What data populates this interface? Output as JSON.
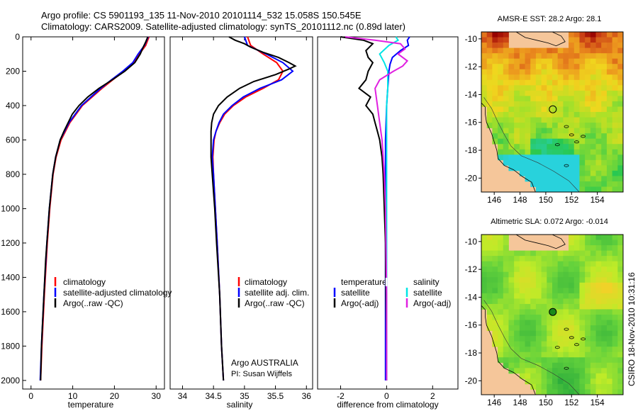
{
  "header": {
    "line1": "Argo profile: CS 5901193_135 11-Nov-2010 20101114_532 15.058S 150.545E",
    "line2": "Climatology: CARS2009. Satellite-adjusted climatology: synTS_20101112.nc (0.89d later)"
  },
  "colors": {
    "clim": "#ff0000",
    "sat": "#0000ff",
    "argo": "#000000",
    "sal_sat": "#00e5e5",
    "sal_argo": "#e020e0",
    "land": "#f5c69a",
    "map_green": "#33cc33"
  },
  "chart_data": [
    {
      "type": "line",
      "id": "temperature",
      "xlabel": "temperature",
      "ylabel": "",
      "xlim": [
        -2,
        32
      ],
      "ylim": [
        2050,
        0
      ],
      "xticks": [
        0,
        10,
        20,
        30
      ],
      "yticks": [
        0,
        200,
        400,
        600,
        800,
        1000,
        1200,
        1400,
        1600,
        1800,
        2000
      ],
      "legend": [
        "climatology",
        "satellite-adjusted climatology",
        "Argo(..raw -QC)"
      ],
      "series": [
        {
          "name": "climatology",
          "color": "#ff0000",
          "depth": [
            0,
            50,
            100,
            150,
            200,
            250,
            300,
            400,
            500,
            600,
            700,
            800,
            1000,
            1200,
            1500,
            1800,
            2000
          ],
          "values": [
            28.3,
            27.5,
            26.0,
            24.8,
            22.3,
            19.6,
            17.0,
            12.3,
            9.3,
            7.2,
            6.0,
            5.3,
            4.5,
            3.9,
            3.2,
            2.6,
            2.3
          ]
        },
        {
          "name": "satellite-adjusted climatology",
          "color": "#0000ff",
          "depth": [
            0,
            50,
            100,
            150,
            200,
            250,
            300,
            400,
            500,
            600,
            700,
            800,
            1000,
            1200,
            1500,
            1800,
            2000
          ],
          "values": [
            28.1,
            27.2,
            25.7,
            24.4,
            22.0,
            19.3,
            16.7,
            12.1,
            9.1,
            7.0,
            5.9,
            5.2,
            4.4,
            3.8,
            3.1,
            2.5,
            2.2
          ]
        },
        {
          "name": "Argo(..raw -QC)",
          "color": "#000000",
          "depth": [
            0,
            30,
            60,
            100,
            150,
            200,
            250,
            300,
            350,
            400,
            450,
            500,
            550,
            600,
            700,
            800,
            900,
            1000,
            1100,
            1200,
            1300,
            1400,
            1500,
            1600,
            1700,
            1800,
            1900,
            2000
          ],
          "values": [
            28.0,
            27.5,
            26.9,
            26.2,
            24.9,
            22.5,
            19.5,
            16.3,
            13.6,
            11.5,
            9.9,
            8.9,
            7.9,
            7.0,
            5.9,
            5.2,
            4.8,
            4.4,
            4.1,
            3.8,
            3.5,
            3.3,
            3.1,
            2.9,
            2.7,
            2.5,
            2.4,
            2.3
          ]
        }
      ]
    },
    {
      "type": "line",
      "id": "salinity",
      "xlabel": "salinity",
      "ylabel": "",
      "xlim": [
        33.8,
        36.1
      ],
      "ylim": [
        2050,
        0
      ],
      "xticks": [
        34,
        34.5,
        35,
        35.5,
        36
      ],
      "legend": [
        "climatology",
        "satellite adj. clim.",
        "Argo(..raw -QC)"
      ],
      "annotation": [
        "Argo AUSTRALIA",
        "PI: Susan Wijffels"
      ],
      "series": [
        {
          "name": "climatology",
          "color": "#ff0000",
          "depth": [
            0,
            50,
            100,
            150,
            200,
            250,
            300,
            350,
            400,
            450,
            500,
            550,
            600,
            700,
            800,
            1000,
            1200,
            1500,
            1800,
            2000
          ],
          "values": [
            35.05,
            35.1,
            35.3,
            35.52,
            35.62,
            35.55,
            35.3,
            35.02,
            34.82,
            34.68,
            34.6,
            34.54,
            34.51,
            34.49,
            34.5,
            34.53,
            34.56,
            34.6,
            34.63,
            34.66
          ]
        },
        {
          "name": "satellite adj. clim.",
          "color": "#0000ff",
          "depth": [
            0,
            50,
            100,
            150,
            200,
            250,
            300,
            350,
            400,
            450,
            500,
            550,
            600,
            700,
            800,
            1000,
            1200,
            1500,
            1800,
            2000
          ],
          "values": [
            35.0,
            35.05,
            35.35,
            35.62,
            35.78,
            35.6,
            35.25,
            34.98,
            34.8,
            34.66,
            34.59,
            34.54,
            34.5,
            34.48,
            34.5,
            34.53,
            34.56,
            34.6,
            34.63,
            34.66
          ]
        },
        {
          "name": "Argo(..raw -QC)",
          "color": "#000000",
          "depth": [
            0,
            20,
            40,
            60,
            90,
            120,
            150,
            170,
            190,
            220,
            260,
            300,
            350,
            400,
            450,
            500,
            550,
            600,
            700,
            800,
            1000,
            1200,
            1500,
            1800,
            2000
          ],
          "values": [
            34.75,
            34.85,
            35.0,
            35.1,
            35.3,
            35.55,
            35.72,
            35.82,
            35.7,
            35.5,
            35.15,
            34.92,
            34.72,
            34.58,
            34.5,
            34.47,
            34.46,
            34.46,
            34.46,
            34.48,
            34.52,
            34.55,
            34.6,
            34.63,
            34.66
          ]
        }
      ]
    },
    {
      "type": "line",
      "id": "difference",
      "xlabel": "difference from climatology",
      "ylabel": "",
      "xlim": [
        -3,
        3.1
      ],
      "ylim": [
        2050,
        0
      ],
      "xticks": [
        -2,
        0,
        2
      ],
      "legend_temperature": {
        "title": "temperature",
        "items": [
          "satellite",
          "Argo(-adj)"
        ]
      },
      "legend_salinity": {
        "title": "salinity",
        "items": [
          "satellite",
          "Argo(-adj)"
        ]
      },
      "series": [
        {
          "name": "temperature satellite",
          "color": "#0000ff",
          "depth": [
            0,
            20,
            50,
            80,
            120,
            160,
            200,
            300,
            400,
            600,
            800,
            1000,
            1500,
            2000
          ],
          "values": [
            1.0,
            0.9,
            0.95,
            0.6,
            0.25,
            0.15,
            0.1,
            0.05,
            0.0,
            -0.05,
            -0.05,
            -0.05,
            -0.05,
            -0.05
          ]
        },
        {
          "name": "temperature Argo(-adj)",
          "color": "#000000",
          "depth": [
            0,
            20,
            40,
            80,
            120,
            150,
            200,
            250,
            300,
            350,
            400,
            450,
            500,
            550,
            600,
            700,
            800,
            1000,
            1200,
            1500,
            1800,
            2000
          ],
          "values": [
            -2.0,
            -1.0,
            -0.6,
            -0.9,
            -0.8,
            -0.6,
            -0.8,
            -0.9,
            -1.2,
            -0.7,
            -0.9,
            -0.6,
            -0.5,
            -0.4,
            -0.3,
            -0.2,
            -0.15,
            -0.1,
            -0.05,
            -0.03,
            0.0,
            0.0
          ]
        },
        {
          "name": "salinity satellite",
          "color": "#00e5e5",
          "depth": [
            0,
            20,
            50,
            100,
            150,
            200,
            300,
            400,
            600,
            800,
            1000,
            1500,
            2000
          ],
          "values": [
            0.4,
            0.5,
            0.1,
            -0.3,
            -0.1,
            0.05,
            0.05,
            0.0,
            0.0,
            0.0,
            0.0,
            0.0,
            0.0
          ]
        },
        {
          "name": "salinity Argo(-adj)",
          "color": "#e020e0",
          "depth": [
            0,
            20,
            40,
            70,
            100,
            140,
            170,
            200,
            250,
            300,
            400,
            500,
            600,
            800,
            1000,
            1500,
            2000
          ],
          "values": [
            -1.8,
            -0.5,
            0.6,
            0.8,
            0.5,
            0.9,
            0.7,
            0.3,
            -0.3,
            -0.5,
            -0.4,
            -0.3,
            -0.2,
            -0.1,
            -0.05,
            0.0,
            0.0
          ]
        }
      ]
    },
    {
      "type": "heatmap",
      "id": "sst_map",
      "title": "AMSR-E SST: 28.2 Argo: 28.1",
      "xlim": [
        145,
        156
      ],
      "ylim": [
        -21,
        -9.5
      ],
      "xticks": [
        146,
        148,
        150,
        152,
        154
      ],
      "yticks": [
        -10,
        -12,
        -14,
        -16,
        -18,
        -20
      ],
      "float_position": [
        150.545,
        -15.058
      ]
    },
    {
      "type": "heatmap",
      "id": "sla_map",
      "title": "Altimetric SLA: 0.072 Argo: -0.014",
      "xlim": [
        145,
        156
      ],
      "ylim": [
        -21,
        -9.5
      ],
      "xticks": [
        146,
        148,
        150,
        152,
        154
      ],
      "yticks": [
        -10,
        -12,
        -14,
        -16,
        -18,
        -20
      ],
      "float_position": [
        150.545,
        -15.058
      ]
    }
  ],
  "footer": {
    "credit": "CSIRO 18-Nov-2010 10:31:16"
  }
}
